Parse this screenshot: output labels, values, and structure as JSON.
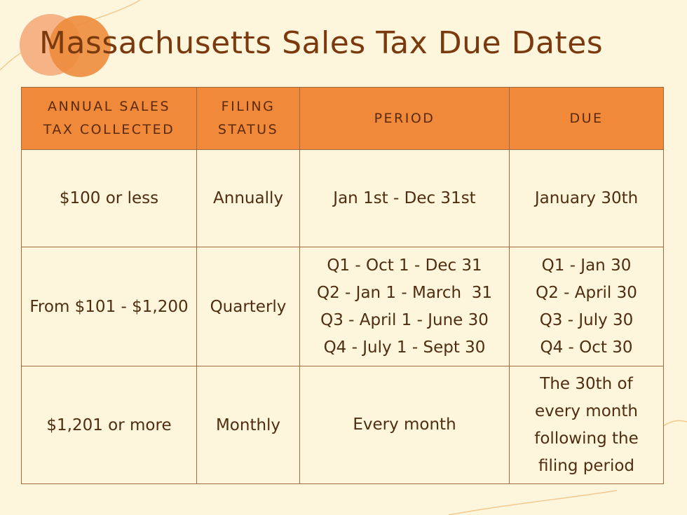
{
  "title": "Massachusetts Sales Tax Due Dates",
  "colors": {
    "background": "#fdf6dc",
    "header_fill": "#f08a3a",
    "circle_light": "#f6b386",
    "circle_dark": "#ee8a3a",
    "title_text": "#7a3a0e"
  },
  "table": {
    "headers": {
      "annual": [
        "ANNUAL SALES",
        "TAX COLLECTED"
      ],
      "status": [
        "FILING",
        "STATUS"
      ],
      "period": "PERIOD",
      "due": "DUE"
    },
    "rows": [
      {
        "annual": "$100 or less",
        "status": "Annually",
        "period": [
          "Jan 1st - Dec 31st"
        ],
        "due": [
          "January 30th"
        ]
      },
      {
        "annual": "From $101 - $1,200",
        "status": "Quarterly",
        "period": [
          "Q1 - Oct 1 - Dec 31",
          "Q2 - Jan 1 - March  31",
          "Q3 - April 1 - June 30",
          "Q4 - July 1 - Sept 30"
        ],
        "due": [
          "Q1 - Jan 30",
          "Q2 - April 30",
          "Q3 - July 30",
          "Q4 - Oct 30"
        ]
      },
      {
        "annual": "$1,201 or more",
        "status": "Monthly",
        "period": [
          "Every month"
        ],
        "due": [
          "The 30th of",
          "every month",
          "following the",
          "filing period"
        ]
      }
    ]
  }
}
